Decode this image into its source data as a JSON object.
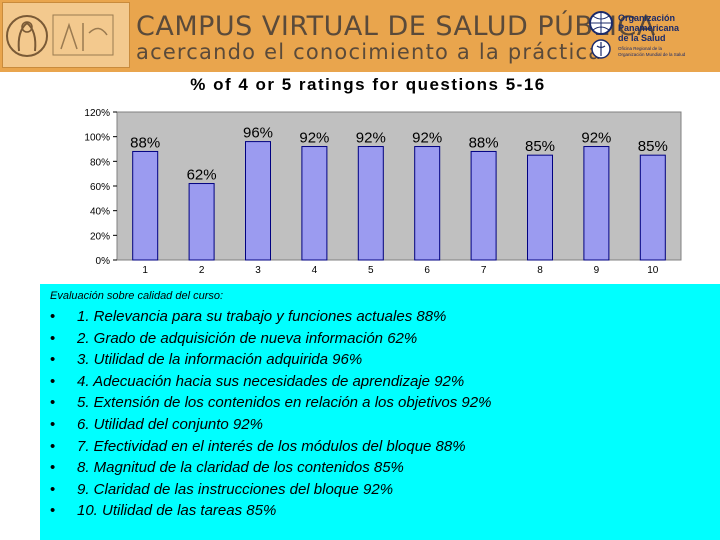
{
  "header": {
    "title": "CAMPUS VIRTUAL DE SALUD PÚBLICA",
    "subtitle": "acercando el conocimiento a la práctica",
    "org_line1": "Organización",
    "org_line2": "Panamericana",
    "org_line3": "de la Salud",
    "org_note1": "Oficina Regional de la",
    "org_note2": "Organización Mundial de la Salud"
  },
  "chart_data": {
    "type": "bar",
    "title": "% of 4 or 5 ratings for questions 5-16",
    "categories": [
      "1",
      "2",
      "3",
      "4",
      "5",
      "6",
      "7",
      "8",
      "9",
      "10"
    ],
    "values": [
      88,
      62,
      96,
      92,
      92,
      92,
      88,
      85,
      92,
      85
    ],
    "data_labels": [
      "88%",
      "62%",
      "96%",
      "92%",
      "92%",
      "92%",
      "88%",
      "85%",
      "92%",
      "85%"
    ],
    "y_ticks": [
      "0%",
      "20%",
      "40%",
      "60%",
      "80%",
      "100%",
      "120%"
    ],
    "ylim": [
      0,
      120
    ],
    "grid": false,
    "colors": {
      "bar": "#9b9bf0",
      "bar_edge": "#000080",
      "plot_bg": "#c0c0c0"
    }
  },
  "evaluation": {
    "title": "Evaluación sobre calidad del curso:",
    "bullet": "•",
    "items": [
      "1. Relevancia para su trabajo y funciones actuales 88%",
      "2. Grado de adquisición de nueva información 62%",
      "3. Utilidad de la información adquirida 96%",
      "4. Adecuación hacia sus necesidades de aprendizaje 92%",
      "5. Extensión de los contenidos en relación a los objetivos 92%",
      "6. Utilidad del conjunto 92%",
      "7. Efectividad en el interés de los módulos  del bloque 88%",
      "8. Magnitud de la claridad de los contenidos 85%",
      "9. Claridad de las instrucciones del bloque 92%",
      "10. Utilidad de las tareas 85%"
    ]
  },
  "colors": {
    "header_bg": "#e9a54d",
    "panel_bg": "#00ffff"
  }
}
